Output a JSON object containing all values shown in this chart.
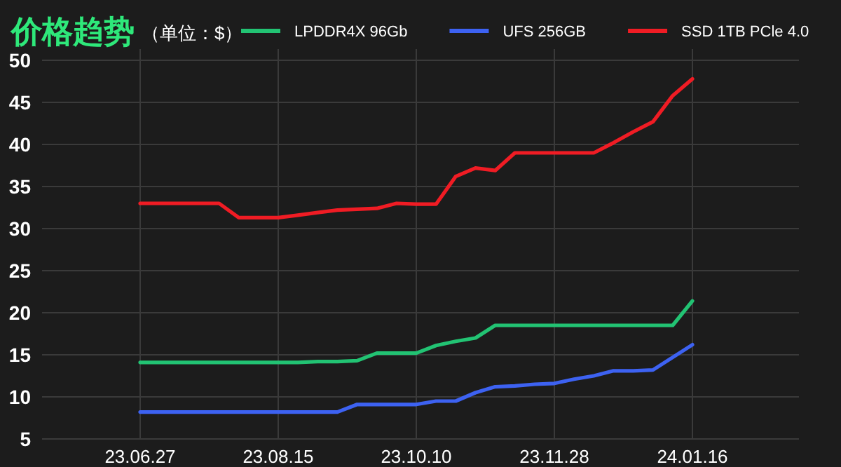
{
  "chart_data": {
    "type": "line",
    "title": "价格趋势",
    "subtitle": "（单位：$）",
    "categories": [
      "23.06.27",
      null,
      null,
      null,
      null,
      null,
      null,
      "23.08.15",
      null,
      null,
      null,
      null,
      null,
      null,
      "23.10.10",
      null,
      null,
      null,
      null,
      null,
      null,
      "23.11.28",
      null,
      null,
      null,
      null,
      null,
      null,
      "24.01.16"
    ],
    "series": [
      {
        "name": "LPDDR4X 96Gb",
        "color": "#22c373",
        "values": [
          14.1,
          14.1,
          14.1,
          14.1,
          14.1,
          14.1,
          14.1,
          14.1,
          14.1,
          14.2,
          14.2,
          14.3,
          15.2,
          15.2,
          15.2,
          16.1,
          16.6,
          17.0,
          18.5,
          18.5,
          18.5,
          18.5,
          18.5,
          18.5,
          18.5,
          18.5,
          18.5,
          18.5,
          21.4
        ]
      },
      {
        "name": "UFS 256GB",
        "color": "#3d62f2",
        "values": [
          8.2,
          8.2,
          8.2,
          8.2,
          8.2,
          8.2,
          8.2,
          8.2,
          8.2,
          8.2,
          8.2,
          9.1,
          9.1,
          9.1,
          9.1,
          9.5,
          9.5,
          10.5,
          11.2,
          11.3,
          11.5,
          11.6,
          12.1,
          12.5,
          13.1,
          13.1,
          13.2,
          14.7,
          16.2
        ]
      },
      {
        "name": "SSD 1TB PCle 4.0",
        "color": "#f01c24",
        "values": [
          33,
          33,
          33,
          33,
          33,
          31.3,
          31.3,
          31.3,
          31.6,
          31.9,
          32.2,
          32.3,
          32.4,
          33,
          32.9,
          32.9,
          36.2,
          37.2,
          36.9,
          39,
          39,
          39,
          39,
          39,
          40.2,
          41.5,
          42.7,
          45.8,
          47.8
        ]
      }
    ],
    "ylim": [
      5,
      50
    ],
    "yticks": [
      5,
      10,
      15,
      20,
      25,
      30,
      35,
      40,
      45,
      50
    ],
    "grid": true,
    "legend": "top",
    "marker": "none",
    "line_style": "solid"
  }
}
